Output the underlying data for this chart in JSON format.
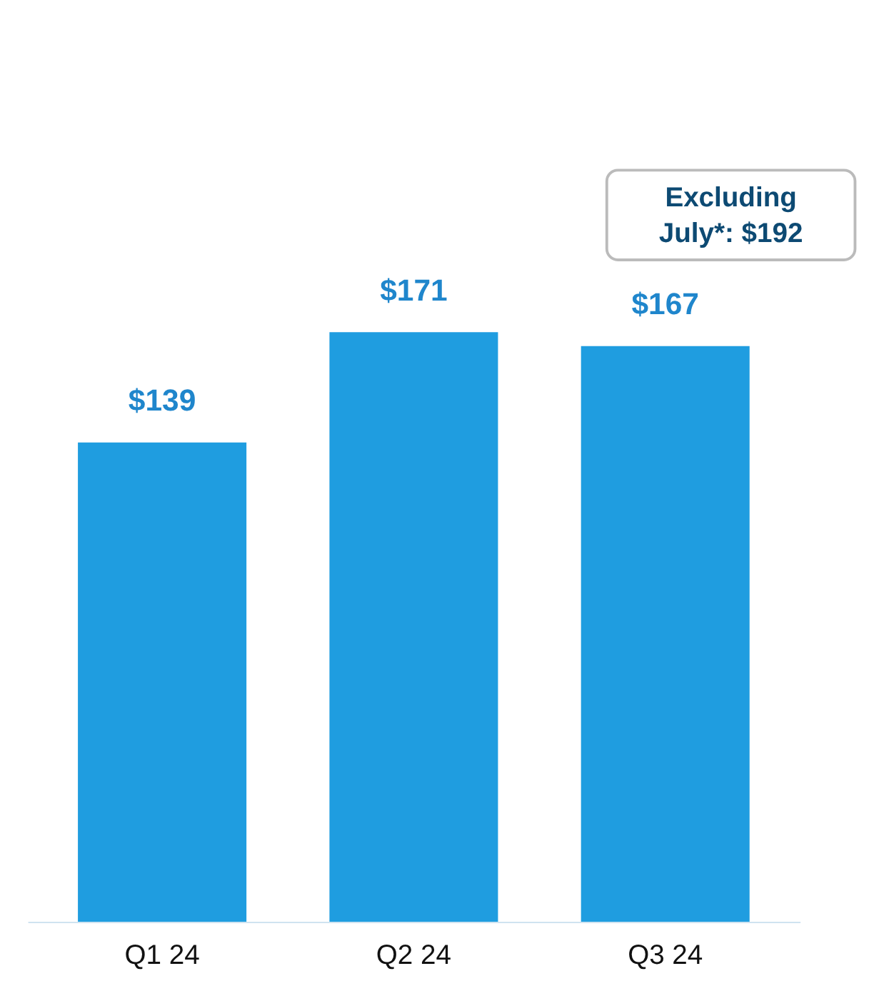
{
  "chart_data": {
    "type": "bar",
    "categories": [
      "Q1 24",
      "Q2 24",
      "Q3 24"
    ],
    "values": [
      139,
      171,
      167
    ],
    "color": "#1f9de0",
    "value_labels": [
      "$139",
      "$171",
      "$167"
    ],
    "annotations": [
      "Excluding July*: $192"
    ],
    "grid": false
  }
}
